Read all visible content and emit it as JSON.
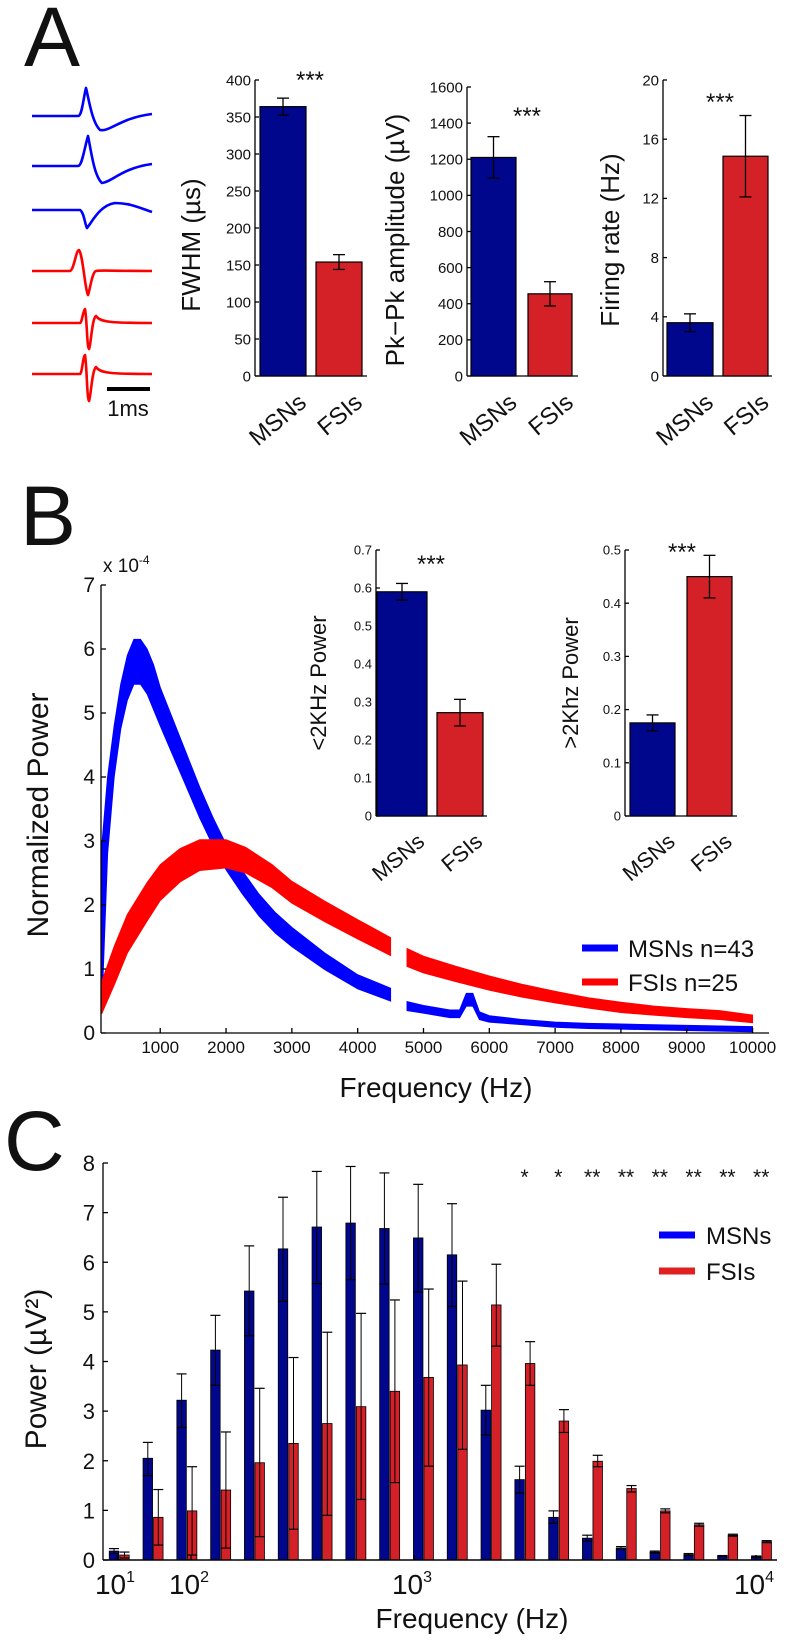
{
  "panels": {
    "a": "A",
    "b": "B",
    "c": "C"
  },
  "waveforms": {
    "scale_bar_label": "1ms"
  },
  "colors": {
    "msn_bar": "#00078c",
    "fsi_bar": "#d42027",
    "msn_line": "#0000ff",
    "fsi_line": "#ff0000"
  },
  "chart_data": [
    {
      "id": "fwhm-chart",
      "type": "bar",
      "title": "",
      "ylabel": "FWHM (µs)",
      "ylim": [
        0,
        400
      ],
      "yticks": [
        0,
        50,
        100,
        150,
        200,
        250,
        300,
        350,
        400
      ],
      "yticklabels": [
        "0",
        "50",
        "100",
        "150",
        "200",
        "250",
        "300",
        "350",
        "400"
      ],
      "categories": [
        "MSNs",
        "FSIs"
      ],
      "values": [
        364,
        154
      ],
      "errors": [
        11.5,
        10
      ],
      "significance": "***"
    },
    {
      "id": "amplitude-chart",
      "type": "bar",
      "title": "",
      "ylabel": "Pk−Pk amplitude (µV)",
      "ylim": [
        0,
        1600
      ],
      "yticks": [
        0,
        200,
        400,
        600,
        800,
        1000,
        1200,
        1400,
        1600
      ],
      "yticklabels": [
        "0",
        "200",
        "400",
        "600",
        "800",
        "1000",
        "1200",
        "1400",
        "1600"
      ],
      "categories": [
        "MSNs",
        "FSIs"
      ],
      "values": [
        1210,
        455
      ],
      "errors": [
        115,
        67
      ],
      "significance": "***"
    },
    {
      "id": "firing-rate-chart",
      "type": "bar",
      "title": "",
      "ylabel": "Firing rate (Hz)",
      "ylim": [
        0,
        20
      ],
      "yticks": [
        0,
        4,
        8,
        12,
        16,
        20
      ],
      "yticklabels": [
        "0",
        "4",
        "8",
        "12",
        "16",
        "20"
      ],
      "categories": [
        "MSNs",
        "FSIs"
      ],
      "values": [
        3.6,
        14.85
      ],
      "errors": [
        0.6,
        2.75
      ],
      "significance": "***"
    },
    {
      "id": "normalized-power-chart",
      "type": "area",
      "title": "",
      "xlabel": "Frequency (Hz)",
      "ylabel": "Normalized Power",
      "y_multiplier": "x 10",
      "y_multiplier_exp": "-4",
      "xlim": [
        100,
        10250
      ],
      "ylim": [
        0,
        7
      ],
      "xticks": [
        1000,
        2000,
        3000,
        4000,
        5000,
        6000,
        7000,
        8000,
        9000,
        10000
      ],
      "xticklabels": [
        "1000",
        "2000",
        "3000",
        "4000",
        "5000",
        "6000",
        "7000",
        "8000",
        "9000",
        "10000"
      ],
      "yticks": [
        0,
        1,
        2,
        3,
        4,
        5,
        6,
        7
      ],
      "yticklabels": [
        "0",
        "1",
        "2",
        "3",
        "4",
        "5",
        "6",
        "7"
      ],
      "legend_position": "right",
      "series": [
        {
          "name": "MSNs n=43",
          "color": "#0000ff",
          "segments": [
            [
              [
                110,
                1.6,
                1.3
              ],
              [
                200,
                3.4,
                0.6
              ],
              [
                300,
                4.4,
                0.4
              ],
              [
                400,
                5.1,
                0.35
              ],
              [
                500,
                5.55,
                0.35
              ],
              [
                600,
                5.8,
                0.35
              ],
              [
                700,
                5.8,
                0.35
              ],
              [
                800,
                5.65,
                0.35
              ],
              [
                900,
                5.4,
                0.35
              ],
              [
                1000,
                5.1,
                0.3
              ],
              [
                1200,
                4.6,
                0.28
              ],
              [
                1400,
                4.1,
                0.26
              ],
              [
                1600,
                3.6,
                0.24
              ],
              [
                1800,
                3.15,
                0.22
              ],
              [
                2000,
                2.75,
                0.2
              ],
              [
                2250,
                2.35,
                0.18
              ],
              [
                2500,
                2.0,
                0.17
              ],
              [
                2750,
                1.72,
                0.16
              ],
              [
                3000,
                1.5,
                0.15
              ],
              [
                3500,
                1.12,
                0.13
              ],
              [
                4000,
                0.8,
                0.11
              ],
              [
                4500,
                0.6,
                0.1
              ]
            ],
            [
              [
                4750,
                0.42,
                0.07
              ],
              [
                5000,
                0.37,
                0.06
              ],
              [
                5400,
                0.3,
                0.06
              ],
              [
                5550,
                0.3,
                0.06
              ],
              [
                5650,
                0.52,
                0.1
              ],
              [
                5750,
                0.52,
                0.1
              ],
              [
                5850,
                0.27,
                0.06
              ],
              [
                6000,
                0.22,
                0.05
              ],
              [
                6500,
                0.17,
                0.04
              ],
              [
                7000,
                0.13,
                0.04
              ],
              [
                7500,
                0.11,
                0.04
              ],
              [
                8000,
                0.1,
                0.04
              ],
              [
                9000,
                0.08,
                0.04
              ],
              [
                10000,
                0.06,
                0.04
              ]
            ]
          ]
        },
        {
          "name": "FSIs n=25",
          "color": "#ff0000",
          "segments": [
            [
              [
                110,
                0.55,
                0.25
              ],
              [
                300,
                1.05,
                0.3
              ],
              [
                500,
                1.55,
                0.3
              ],
              [
                800,
                2.05,
                0.3
              ],
              [
                1000,
                2.35,
                0.28
              ],
              [
                1300,
                2.62,
                0.26
              ],
              [
                1600,
                2.78,
                0.24
              ],
              [
                2000,
                2.8,
                0.22
              ],
              [
                2300,
                2.7,
                0.2
              ],
              [
                2700,
                2.45,
                0.18
              ],
              [
                3000,
                2.2,
                0.17
              ],
              [
                3500,
                1.9,
                0.16
              ],
              [
                4000,
                1.62,
                0.15
              ],
              [
                4500,
                1.35,
                0.14
              ]
            ],
            [
              [
                4750,
                1.18,
                0.14
              ],
              [
                5000,
                1.07,
                0.13
              ],
              [
                5500,
                0.92,
                0.12
              ],
              [
                6000,
                0.78,
                0.11
              ],
              [
                6500,
                0.66,
                0.1
              ],
              [
                7000,
                0.56,
                0.09
              ],
              [
                7500,
                0.47,
                0.08
              ],
              [
                8000,
                0.4,
                0.08
              ],
              [
                8500,
                0.35,
                0.07
              ],
              [
                9000,
                0.31,
                0.07
              ],
              [
                9500,
                0.28,
                0.07
              ],
              [
                10000,
                0.22,
                0.06
              ]
            ]
          ]
        }
      ]
    },
    {
      "id": "low-frequency-power-chart",
      "type": "bar",
      "title": "",
      "ylabel": "<2KHz Power",
      "ylim": [
        0,
        0.7
      ],
      "yticks": [
        0,
        0.1,
        0.2,
        0.3,
        0.4,
        0.5,
        0.6,
        0.7
      ],
      "yticklabels": [
        "0",
        "0.1",
        "0.2",
        "0.3",
        "0.4",
        "0.5",
        "0.6",
        "0.7"
      ],
      "categories": [
        "MSNs",
        "FSIs"
      ],
      "values": [
        0.59,
        0.272
      ],
      "errors": [
        0.022,
        0.035
      ],
      "significance": "***"
    },
    {
      "id": "high-frequency-power-chart",
      "type": "bar",
      "title": "",
      "ylabel": ">2Khz Power",
      "ylim": [
        0,
        0.5
      ],
      "yticks": [
        0,
        0.1,
        0.2,
        0.3,
        0.4,
        0.5
      ],
      "yticklabels": [
        "0",
        "0.1",
        "0.2",
        "0.3",
        "0.4",
        "0.5"
      ],
      "categories": [
        "MSNs",
        "FSIs"
      ],
      "values": [
        0.175,
        0.45
      ],
      "errors": [
        0.015,
        0.04
      ],
      "significance": "***"
    },
    {
      "id": "power-spectrum-bar-chart",
      "type": "bar",
      "title": "",
      "xlabel": "Frequency (Hz)",
      "ylabel": "Power (µV²)",
      "ylim": [
        0,
        8
      ],
      "yticks": [
        0,
        1,
        2,
        3,
        4,
        5,
        6,
        7,
        8
      ],
      "yticklabels": [
        "0",
        "1",
        "2",
        "3",
        "4",
        "5",
        "6",
        "7",
        "8"
      ],
      "xticklabels": [
        {
          "base": "10",
          "exp": "1"
        },
        {
          "base": "10",
          "exp": "2"
        },
        {
          "base": "10",
          "exp": "3"
        },
        {
          "base": "10",
          "exp": "4"
        }
      ],
      "legend_position": "top-right",
      "series": [
        {
          "name": "MSNs",
          "values": [
            0.18,
            2.05,
            3.22,
            4.23,
            5.42,
            6.27,
            6.71,
            6.79,
            6.68,
            6.49,
            6.15,
            3.02,
            1.62,
            0.86,
            0.44,
            0.24,
            0.16,
            0.11,
            0.08,
            0.07
          ],
          "lower": [
            0.13,
            1.7,
            2.67,
            3.52,
            4.52,
            5.21,
            5.57,
            5.65,
            5.56,
            5.4,
            5.11,
            2.52,
            1.35,
            0.74,
            0.38,
            0.21,
            0.14,
            0.09,
            0.07,
            0.06
          ],
          "upper": [
            0.23,
            2.37,
            3.75,
            4.93,
            6.33,
            7.31,
            7.83,
            7.93,
            7.8,
            7.57,
            7.18,
            3.52,
            1.89,
            0.99,
            0.5,
            0.27,
            0.18,
            0.13,
            0.09,
            0.08
          ]
        },
        {
          "name": "FSIs",
          "values": [
            0.1,
            0.86,
            0.99,
            1.41,
            1.96,
            2.35,
            2.75,
            3.09,
            3.4,
            3.68,
            3.93,
            5.14,
            3.96,
            2.8,
            1.99,
            1.44,
            0.99,
            0.71,
            0.5,
            0.37
          ],
          "lower": [
            0.04,
            0.3,
            0.1,
            0.24,
            0.47,
            0.62,
            0.9,
            1.22,
            1.56,
            1.89,
            2.23,
            4.31,
            3.52,
            2.57,
            1.88,
            1.37,
            0.95,
            0.68,
            0.48,
            0.35
          ],
          "upper": [
            0.16,
            1.42,
            1.88,
            2.58,
            3.46,
            4.08,
            4.59,
            4.97,
            5.24,
            5.46,
            5.62,
            5.96,
            4.4,
            3.03,
            2.11,
            1.5,
            1.03,
            0.74,
            0.52,
            0.39
          ]
        }
      ],
      "significance": [
        "",
        "",
        "",
        "",
        "",
        "",
        "",
        "",
        "",
        "",
        "",
        "",
        "*",
        "*",
        "**",
        "**",
        "**",
        "**",
        "**",
        "**"
      ]
    }
  ]
}
